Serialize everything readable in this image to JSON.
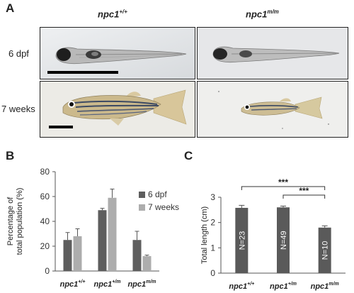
{
  "panel_a": {
    "letter": "A",
    "col_labels": [
      {
        "base": "npc1",
        "sup": "+/+"
      },
      {
        "base": "npc1",
        "sup": "m/m"
      }
    ],
    "row_labels": [
      "6 dpf",
      "7 weeks"
    ]
  },
  "panel_b": {
    "letter": "B",
    "legend": [
      "6 dpf",
      "7 weeks"
    ]
  },
  "panel_c": {
    "letter": "C",
    "significance": [
      "***",
      "***"
    ]
  },
  "colors": {
    "series_6dpf": "#5e5e5e",
    "series_7weeks": "#adadad",
    "bar_c": "#5a5a5a"
  },
  "chart_data": [
    {
      "type": "bar",
      "categories": [
        {
          "base": "npc1",
          "sup": "+/+"
        },
        {
          "base": "npc1",
          "sup": "+/m"
        },
        {
          "base": "npc1",
          "sup": "m/m"
        }
      ],
      "series": [
        {
          "name": "6 dpf",
          "values": [
            25,
            49,
            25
          ],
          "errors": [
            6,
            1.5,
            7
          ]
        },
        {
          "name": "7 weeks",
          "values": [
            28,
            59,
            12
          ],
          "errors": [
            6,
            7,
            0.8
          ]
        }
      ],
      "ylabel_lines": [
        "Percentage of",
        "total population (%)"
      ],
      "ylim": [
        0,
        80
      ],
      "yticks": [
        "0",
        "20",
        "40",
        "60",
        "80"
      ],
      "legend_position": "right",
      "grid": false
    },
    {
      "type": "bar",
      "categories": [
        {
          "base": "npc1",
          "sup": "+/+"
        },
        {
          "base": "npc1",
          "sup": "+/m"
        },
        {
          "base": "npc1",
          "sup": "m/m"
        }
      ],
      "values": [
        2.58,
        2.6,
        1.8
      ],
      "errors": [
        0.1,
        0.05,
        0.07
      ],
      "bar_labels": [
        "N=23",
        "N=49",
        "N=10"
      ],
      "ylabel": "Total length (cm)",
      "ylim": [
        0,
        3
      ],
      "yticks": [
        "0",
        "1",
        "2",
        "3"
      ],
      "grid": false
    }
  ]
}
